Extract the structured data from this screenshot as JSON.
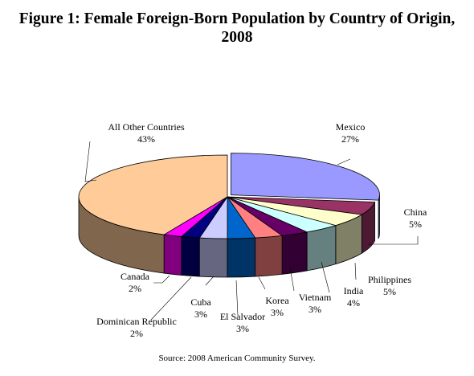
{
  "title": {
    "line1": "Figure 1: Female Foreign-Born Population by Country of Origin,",
    "line2": "2008"
  },
  "source": "Source: 2008 American Community Survey.",
  "chart_data": {
    "type": "pie",
    "style": "3d-exploded-top",
    "title": "Figure 1: Female Foreign-Born Population by Country of Origin, 2008",
    "slices": [
      {
        "label": "Mexico",
        "value": 27,
        "display": "27%",
        "color": "#9999ff"
      },
      {
        "label": "China",
        "value": 5,
        "display": "5%",
        "color": "#993366"
      },
      {
        "label": "Philippines",
        "value": 5,
        "display": "5%",
        "color": "#ffffcc"
      },
      {
        "label": "India",
        "value": 4,
        "display": "4%",
        "color": "#ccffff"
      },
      {
        "label": "Vietnam",
        "value": 3,
        "display": "3%",
        "color": "#660066"
      },
      {
        "label": "Korea",
        "value": 3,
        "display": "3%",
        "color": "#ff8080"
      },
      {
        "label": "El Salvador",
        "value": 3,
        "display": "3%",
        "color": "#0066cc"
      },
      {
        "label": "Cuba",
        "value": 3,
        "display": "3%",
        "color": "#ccccff"
      },
      {
        "label": "Dominican Republic",
        "value": 2,
        "display": "2%",
        "color": "#000080"
      },
      {
        "label": "Canada",
        "value": 2,
        "display": "2%",
        "color": "#ff00ff"
      },
      {
        "label": "All Other Countries",
        "value": 43,
        "display": "43%",
        "color": "#ffcc99"
      }
    ]
  }
}
